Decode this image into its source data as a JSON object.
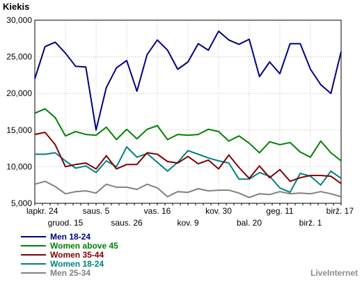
{
  "chart_data": {
    "type": "line",
    "ylabel": "Kiekis",
    "ylim": [
      5000,
      30000
    ],
    "yticks": [
      "5,000",
      "10,000",
      "15,000",
      "20,000",
      "25,000",
      "30,000"
    ],
    "grid": true,
    "legend_placement": "bottom-left",
    "x_labels_row1": [
      {
        "i": 0,
        "text": "lapkr. 24"
      },
      {
        "i": 8,
        "text": "saus. 5"
      },
      {
        "i": 16,
        "text": "vas. 16"
      },
      {
        "i": 24,
        "text": "kov. 30"
      },
      {
        "i": 32,
        "text": "geg. 11"
      },
      {
        "i": 40,
        "text": "birž. 17"
      }
    ],
    "x_labels_row2": [
      {
        "i": 4,
        "text": "gruod. 15"
      },
      {
        "i": 12,
        "text": "saus. 26"
      },
      {
        "i": 20,
        "text": "kov. 9"
      },
      {
        "i": 28,
        "text": "bal. 20"
      },
      {
        "i": 36,
        "text": "birž. 1"
      }
    ],
    "series": [
      {
        "name": "Men 18-24",
        "color": "#000080",
        "values": [
          22000,
          26400,
          27000,
          25500,
          23700,
          23600,
          15000,
          20800,
          23500,
          24500,
          20300,
          25300,
          27300,
          25900,
          23300,
          24300,
          26800,
          25900,
          28500,
          27300,
          26700,
          27400,
          22300,
          24300,
          22700,
          26800,
          26800,
          23300,
          21200,
          20000,
          25700
        ]
      },
      {
        "name": "Women above 45",
        "color": "#008000",
        "values": [
          17300,
          17900,
          16700,
          14200,
          14800,
          14400,
          14300,
          15400,
          13700,
          15100,
          13800,
          15100,
          15600,
          13700,
          14400,
          14300,
          14400,
          15100,
          14800,
          13500,
          14200,
          13200,
          11900,
          13400,
          13000,
          13300,
          12000,
          11300,
          13500,
          11900,
          10800
        ]
      },
      {
        "name": "Women 35-44",
        "color": "#800000",
        "values": [
          14400,
          14700,
          13000,
          10000,
          10300,
          10500,
          9700,
          11500,
          9700,
          10300,
          10300,
          11900,
          11700,
          10700,
          10500,
          11400,
          10400,
          10900,
          9700,
          11600,
          9900,
          8400,
          10100,
          8500,
          9600,
          8000,
          8500,
          8800,
          8800,
          8700,
          7700
        ]
      },
      {
        "name": "Women 18-24",
        "color": "#008080",
        "values": [
          11700,
          11700,
          11900,
          10800,
          9800,
          10100,
          9200,
          10800,
          10000,
          12700,
          11300,
          11800,
          10600,
          9400,
          10600,
          12200,
          11700,
          11200,
          10800,
          10500,
          8300,
          8300,
          9200,
          8700,
          7100,
          6500,
          9100,
          8700,
          7500,
          9400,
          8400
        ]
      },
      {
        "name": "Men 25-34",
        "color": "#808080",
        "values": [
          7600,
          8000,
          7300,
          6300,
          6600,
          6700,
          6400,
          7600,
          7200,
          7200,
          6900,
          7600,
          7100,
          5900,
          6600,
          6500,
          7000,
          6700,
          6800,
          6800,
          6400,
          5800,
          6300,
          6200,
          6600,
          6300,
          6400,
          6300,
          6600,
          6300,
          5900
        ]
      }
    ]
  },
  "brand": "LiveInternet"
}
